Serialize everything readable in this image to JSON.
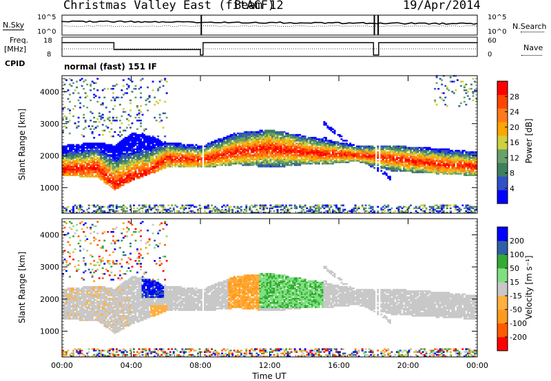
{
  "header": {
    "title": "Christmas Valley East (fitACF)",
    "beam": "Beam 12",
    "date": "19/Apr/2014"
  },
  "top_panels": {
    "nsky_label": "N.Sky",
    "nsearch_label": "N.Search",
    "left_ticks_noise": [
      "10^5",
      "10^0"
    ],
    "right_ticks_noise": [
      "10^5",
      "10^0"
    ],
    "freq_label_1": "Freq.",
    "freq_label_2": "[MHz]",
    "freq_ticks": [
      "18",
      "8"
    ],
    "nave_label": "Nave",
    "nave_ticks": [
      "60",
      "0"
    ],
    "cpid_label": "CPID",
    "cpid_value": "normal (fast) 151 IF"
  },
  "colors": {
    "power_scale": [
      "#0000ff",
      "#3050c8",
      "#3f7f5f",
      "#6aa06a",
      "#cfcf40",
      "#ffa500",
      "#ff7a1a",
      "#ff4500",
      "#ff0000"
    ],
    "velocity_scale": [
      "#0000ff",
      "#2f5fa8",
      "#33aa33",
      "#7fe07f",
      "#c8c8c8",
      "#ffb040",
      "#ff9a1f",
      "#ff5a00",
      "#ff0000"
    ],
    "gray": "#c8c8c8"
  },
  "chart_data": [
    {
      "type": "heatmap",
      "name": "power",
      "ylabel": "Slant Range [km]",
      "yticks": [
        "1000",
        "2000",
        "3000",
        "4000"
      ],
      "ylim": [
        200,
        4500
      ],
      "xticks": [
        "00:00",
        "04:00",
        "08:00",
        "12:00",
        "16:00",
        "20:00",
        "00:00"
      ],
      "xlim_hours": [
        0,
        24
      ],
      "colorbar_label": "Power [dB]",
      "colorbar_ticks": [
        "28",
        "24",
        "20",
        "16",
        "12",
        "8",
        "4"
      ],
      "backscatter_band_km": [
        {
          "t": 0,
          "lo": 1350,
          "hi": 2300,
          "core": 1550
        },
        {
          "t": 2,
          "lo": 1300,
          "hi": 2400,
          "core": 1600
        },
        {
          "t": 3,
          "lo": 900,
          "hi": 2300,
          "core": 1100
        },
        {
          "t": 4,
          "lo": 1200,
          "hi": 2700,
          "core": 1300
        },
        {
          "t": 5,
          "lo": 1400,
          "hi": 2600,
          "core": 1500
        },
        {
          "t": 6,
          "lo": 1600,
          "hi": 2400,
          "core": 1900
        },
        {
          "t": 8,
          "lo": 1600,
          "hi": 2300,
          "core": 1850
        },
        {
          "t": 10,
          "lo": 1700,
          "hi": 2700,
          "core": 2100
        },
        {
          "t": 12,
          "lo": 1600,
          "hi": 2800,
          "core": 2200
        },
        {
          "t": 14,
          "lo": 1700,
          "hi": 2600,
          "core": 2100
        },
        {
          "t": 15,
          "lo": 1700,
          "hi": 2500,
          "core": 2050
        },
        {
          "t": 17,
          "lo": 1800,
          "hi": 2300,
          "core": 2000
        },
        {
          "t": 19,
          "lo": 1500,
          "hi": 2300,
          "core": 1900
        },
        {
          "t": 22,
          "lo": 1400,
          "hi": 2200,
          "core": 1700
        },
        {
          "t": 24,
          "lo": 1350,
          "hi": 2100,
          "core": 1650
        }
      ]
    },
    {
      "type": "heatmap",
      "name": "velocity",
      "ylabel": "Slant Range [km]",
      "yticks": [
        "1000",
        "2000",
        "3000",
        "4000"
      ],
      "ylim": [
        200,
        4500
      ],
      "xticks": [
        "00:00",
        "04:00",
        "08:00",
        "12:00",
        "16:00",
        "20:00",
        "00:00"
      ],
      "xlim_hours": [
        0,
        24
      ],
      "xlabel": "Time UT",
      "colorbar_label": "Velocity [m s⁻¹]",
      "colorbar_ticks": [
        "200",
        "100",
        "50",
        "15",
        "-15",
        "-50",
        "-100",
        "-200"
      ]
    }
  ]
}
